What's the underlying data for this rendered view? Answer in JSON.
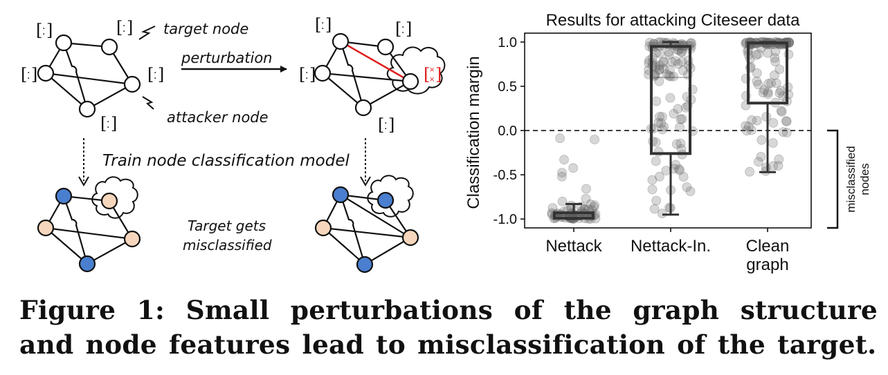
{
  "diagram": {
    "labels": {
      "target_node": "target node",
      "perturbation": "perturbation",
      "attacker_node": "attacker node",
      "train_model": "Train node classification model",
      "target_gets": "Target gets",
      "misclassified": "misclassified"
    },
    "colors": {
      "class_blue": "#4a7fcf",
      "class_peach": "#f6d7bd",
      "perturb_red": "#e01e1e"
    }
  },
  "chart_data": {
    "type": "boxplot-with-strip",
    "title": "Results for attacking Citeseer data",
    "ylabel": "Classification margin",
    "xlabel": "",
    "ylim": [
      -1.1,
      1.1
    ],
    "yticks": [
      -1.0,
      -0.5,
      0.0,
      0.5,
      1.0
    ],
    "ytick_labels": [
      "-1.0",
      "-0.5",
      "0.0",
      "0.5",
      "1.0"
    ],
    "categories": [
      [
        "Nettack"
      ],
      [
        "Nettack-In."
      ],
      [
        "Clean",
        "graph"
      ]
    ],
    "series": [
      {
        "name": "Nettack",
        "whisker_low": -1.0,
        "q1": -0.99,
        "median": -0.96,
        "q3": -0.93,
        "whisker_high": -0.83
      },
      {
        "name": "Nettack-In.",
        "whisker_low": -0.95,
        "q1": -0.26,
        "median": 0.6,
        "q3": 0.95,
        "whisker_high": 1.0
      },
      {
        "name": "Clean graph",
        "whisker_low": -0.47,
        "q1": 0.31,
        "median": 0.97,
        "q3": 0.99,
        "whisker_high": 1.0
      }
    ],
    "reference_line": 0.0,
    "bracket_label": [
      "misclassified",
      "nodes"
    ]
  },
  "caption": "Figure 1: Small perturbations of the graph structure and node features lead to misclassification of the target."
}
